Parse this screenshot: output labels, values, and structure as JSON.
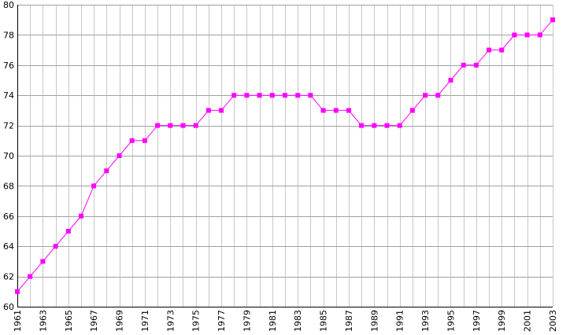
{
  "chart_data": {
    "type": "line",
    "x": [
      1961,
      1962,
      1963,
      1964,
      1965,
      1966,
      1967,
      1968,
      1969,
      1970,
      1971,
      1972,
      1973,
      1974,
      1975,
      1976,
      1977,
      1978,
      1979,
      1980,
      1981,
      1982,
      1983,
      1984,
      1985,
      1986,
      1987,
      1988,
      1989,
      1990,
      1991,
      1992,
      1993,
      1994,
      1995,
      1996,
      1997,
      1998,
      1999,
      2000,
      2001,
      2002,
      2003
    ],
    "values": [
      61,
      62,
      63,
      64,
      65,
      66,
      68,
      69,
      70,
      71,
      71,
      72,
      72,
      72,
      72,
      73,
      73,
      74,
      74,
      74,
      74,
      74,
      74,
      74,
      73,
      73,
      73,
      72,
      72,
      72,
      72,
      73,
      74,
      74,
      75,
      76,
      76,
      77,
      77,
      78,
      78,
      78,
      79
    ],
    "x_tick_labels": [
      "1961",
      "1963",
      "1965",
      "1967",
      "1969",
      "1971",
      "1973",
      "1975",
      "1977",
      "1979",
      "1981",
      "1983",
      "1985",
      "1987",
      "1989",
      "1991",
      "1993",
      "1995",
      "1997",
      "1999",
      "2001",
      "2003"
    ],
    "y_tick_labels": [
      "60",
      "62",
      "64",
      "66",
      "68",
      "70",
      "72",
      "74",
      "76",
      "78",
      "80"
    ],
    "xlim": [
      1961,
      2003
    ],
    "ylim": [
      60,
      80
    ],
    "grid": true,
    "colors": {
      "series": "#ff00ff",
      "grid": "#c8c8c8",
      "axis": "#000000"
    }
  }
}
